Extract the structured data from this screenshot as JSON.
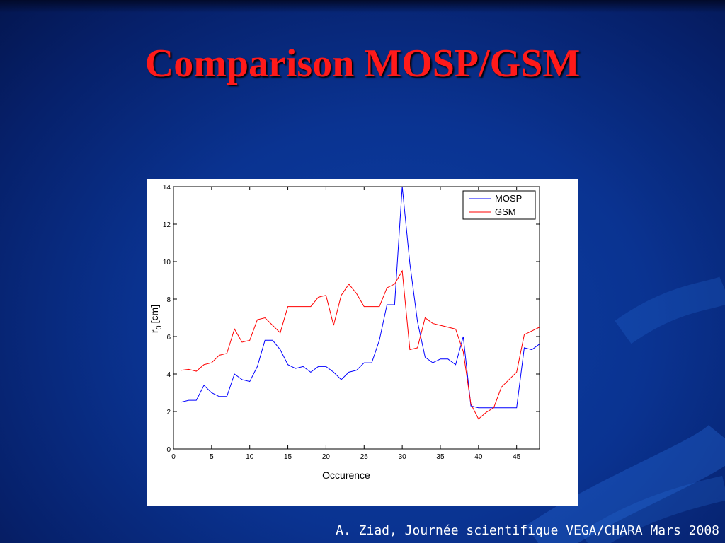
{
  "slide": {
    "title": "Comparison MOSP/GSM",
    "footer": "A. Ziad, Journée scientifique VEGA/CHARA Mars 2008"
  },
  "colors": {
    "title": "#ff1a1a",
    "background": "#0a3391",
    "mosp": "#0000ff",
    "gsm": "#ff0000"
  },
  "chart_data": {
    "type": "line",
    "xlabel": "Occurence",
    "ylabel": "r",
    "ylabel_sub": "0",
    "ylabel_unit": "[cm]",
    "xlim": [
      0,
      48
    ],
    "ylim": [
      0,
      14
    ],
    "xticks": [
      0,
      5,
      10,
      15,
      20,
      25,
      30,
      35,
      40,
      45
    ],
    "yticks": [
      0,
      2,
      4,
      6,
      8,
      10,
      12,
      14
    ],
    "legend_position": "top-right",
    "grid": false,
    "x": [
      1,
      2,
      3,
      4,
      5,
      6,
      7,
      8,
      9,
      10,
      11,
      12,
      13,
      14,
      15,
      16,
      17,
      18,
      19,
      20,
      21,
      22,
      23,
      24,
      25,
      26,
      27,
      28,
      29,
      30,
      31,
      32,
      33,
      34,
      35,
      36,
      37,
      38,
      39,
      40,
      41,
      42,
      43,
      44,
      45,
      46,
      47,
      48
    ],
    "series": [
      {
        "name": "MOSP",
        "color": "#0000ff",
        "values": [
          2.5,
          2.6,
          2.6,
          3.4,
          3.0,
          2.8,
          2.8,
          4.0,
          3.7,
          3.6,
          4.4,
          5.8,
          5.8,
          5.3,
          4.5,
          4.3,
          4.4,
          4.1,
          4.4,
          4.4,
          4.1,
          3.7,
          4.1,
          4.2,
          4.6,
          4.6,
          5.8,
          7.7,
          7.7,
          14.0,
          9.9,
          6.8,
          4.9,
          4.6,
          4.8,
          4.8,
          4.5,
          6.0,
          2.3,
          2.2,
          2.2,
          2.2,
          2.2,
          2.2,
          2.2,
          5.4,
          5.3,
          5.6
        ]
      },
      {
        "name": "GSM",
        "color": "#ff0000",
        "values": [
          4.2,
          4.25,
          4.15,
          4.5,
          4.6,
          5.0,
          5.1,
          6.4,
          5.7,
          5.8,
          6.9,
          7.0,
          6.6,
          6.2,
          7.6,
          7.6,
          7.6,
          7.6,
          8.1,
          8.2,
          6.6,
          8.2,
          8.8,
          8.3,
          7.6,
          7.6,
          7.6,
          8.6,
          8.8,
          9.5,
          5.3,
          5.4,
          7.0,
          6.7,
          6.6,
          6.5,
          6.4,
          5.2,
          2.4,
          1.6,
          1.95,
          2.2,
          3.3,
          3.7,
          4.1,
          6.1,
          6.3,
          6.5
        ]
      }
    ]
  }
}
